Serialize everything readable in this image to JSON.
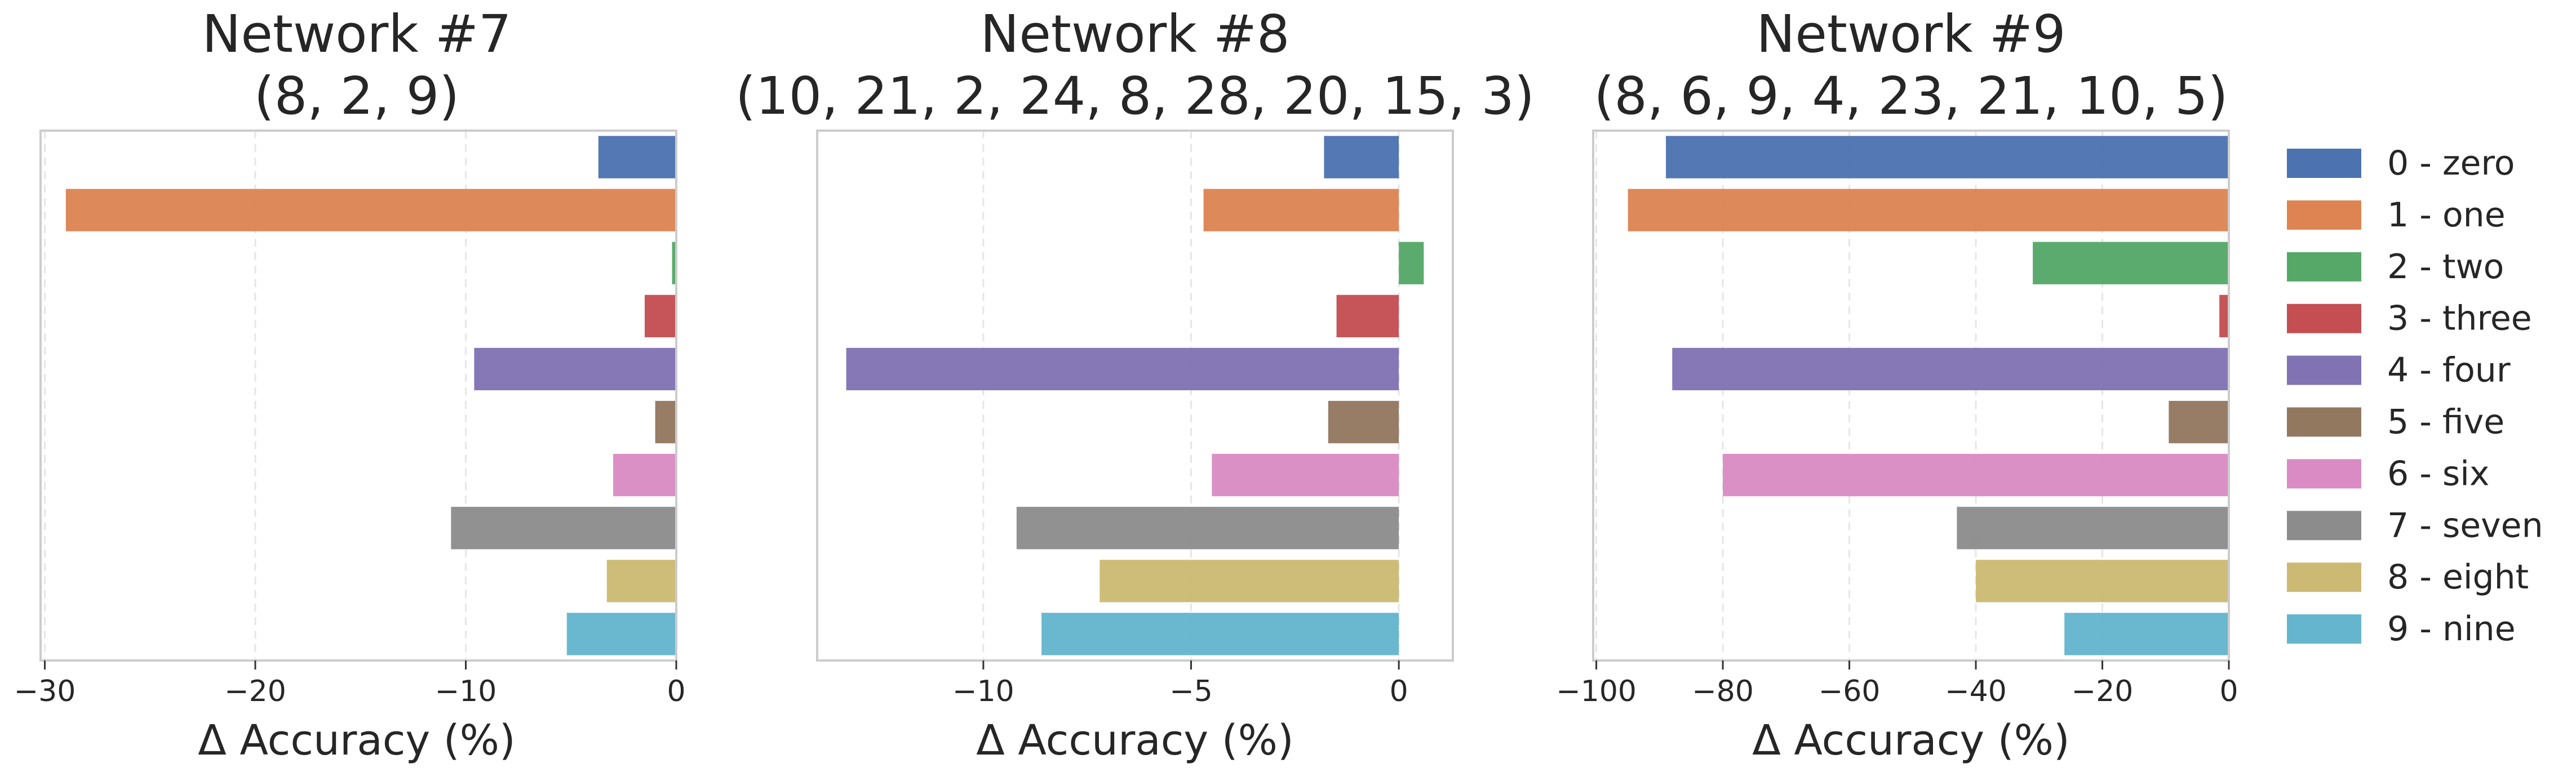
{
  "chart_data": [
    {
      "type": "bar",
      "orientation": "horizontal",
      "title": "Network #7",
      "subtitle": "(8, 2, 9)",
      "xlabel": "Δ Accuracy (%)",
      "ylabel": "",
      "xlim": [
        -30.2,
        0
      ],
      "xticks": [
        -30,
        -20,
        -10,
        0
      ],
      "xtick_labels": [
        "−30",
        "−20",
        "−10",
        "0"
      ],
      "categories": [
        "0 - zero",
        "1 - one",
        "2 - two",
        "3 - three",
        "4 - four",
        "5 - five",
        "6 - six",
        "7 - seven",
        "8 - eight",
        "9 - nine"
      ],
      "values": [
        -3.7,
        -29.0,
        -0.2,
        -1.5,
        -9.6,
        -1.0,
        -3.0,
        -10.7,
        -3.3,
        -5.2
      ],
      "grid": "x-dashed"
    },
    {
      "type": "bar",
      "orientation": "horizontal",
      "title": "Network #8",
      "subtitle": "(10, 21, 2, 24, 8, 28, 20, 15, 3)",
      "xlabel": "Δ Accuracy (%)",
      "ylabel": "",
      "xlim": [
        -14.0,
        1.3
      ],
      "xticks": [
        -10,
        -5,
        0
      ],
      "xtick_labels": [
        "−10",
        "−5",
        "0"
      ],
      "categories": [
        "0 - zero",
        "1 - one",
        "2 - two",
        "3 - three",
        "4 - four",
        "5 - five",
        "6 - six",
        "7 - seven",
        "8 - eight",
        "9 - nine"
      ],
      "values": [
        -1.8,
        -4.7,
        0.6,
        -1.5,
        -13.3,
        -1.7,
        -4.5,
        -9.2,
        -7.2,
        -8.6
      ],
      "grid": "x-dashed"
    },
    {
      "type": "bar",
      "orientation": "horizontal",
      "title": "Network #9",
      "subtitle": "(8, 6, 9, 4, 23, 21, 10, 5)",
      "xlabel": "Δ Accuracy (%)",
      "ylabel": "",
      "xlim": [
        -100.5,
        0
      ],
      "xticks": [
        -100,
        -80,
        -60,
        -40,
        -20,
        0
      ],
      "xtick_labels": [
        "−100",
        "−80",
        "−60",
        "−40",
        "−20",
        "0"
      ],
      "categories": [
        "0 - zero",
        "1 - one",
        "2 - two",
        "3 - three",
        "4 - four",
        "5 - five",
        "6 - six",
        "7 - seven",
        "8 - eight",
        "9 - nine"
      ],
      "values": [
        -89.0,
        -95.0,
        -31.0,
        -1.5,
        -88.0,
        -9.5,
        -80.0,
        -43.0,
        -40.0,
        -26.0
      ],
      "grid": "x-dashed"
    }
  ],
  "legend": {
    "position": "right",
    "entries": [
      {
        "label": "0 - zero",
        "color": "#4c72b0"
      },
      {
        "label": "1 - one",
        "color": "#dd8452"
      },
      {
        "label": "2 - two",
        "color": "#55a868"
      },
      {
        "label": "3 - three",
        "color": "#c44e52"
      },
      {
        "label": "4 - four",
        "color": "#8172b3"
      },
      {
        "label": "5 - five",
        "color": "#937860"
      },
      {
        "label": "6 - six",
        "color": "#da8bc3"
      },
      {
        "label": "7 - seven",
        "color": "#8c8c8c"
      },
      {
        "label": "8 - eight",
        "color": "#ccb974"
      },
      {
        "label": "9 - nine",
        "color": "#64b5cd"
      }
    ]
  }
}
